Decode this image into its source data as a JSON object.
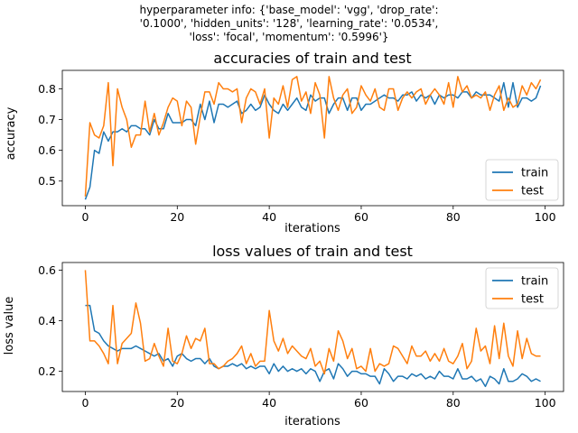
{
  "figure": {
    "suptitle_lines": [
      "hyperparameter info: {'base_model': 'vgg', 'drop_rate':",
      "'0.1000', 'hidden_units': '128', 'learning_rate': '0.0534',",
      "'loss': 'focal', 'momentum': '0.5996'}"
    ]
  },
  "colors": {
    "train": "#1f77b4",
    "test": "#ff7f0e"
  },
  "chart_data": [
    {
      "type": "line",
      "title": "accuracies of train and test",
      "xlabel": "iterations",
      "ylabel": "accuracy",
      "xlim": [
        -5,
        104
      ],
      "ylim": [
        0.42,
        0.86
      ],
      "xticks": [
        0,
        20,
        40,
        60,
        80,
        100
      ],
      "yticks": [
        0.5,
        0.6,
        0.7,
        0.8
      ],
      "ytick_labels": [
        "0.5",
        "0.6",
        "0.7",
        "0.8"
      ],
      "legend": {
        "placement": "lower-right",
        "entries": [
          "train",
          "test"
        ]
      },
      "grid": false,
      "series": [
        {
          "name": "train",
          "color": "#1f77b4",
          "x": [
            0,
            1,
            2,
            3,
            4,
            5,
            6,
            7,
            8,
            9,
            10,
            11,
            12,
            13,
            14,
            15,
            16,
            17,
            18,
            19,
            20,
            21,
            22,
            23,
            24,
            25,
            26,
            27,
            28,
            29,
            30,
            31,
            32,
            33,
            34,
            35,
            36,
            37,
            38,
            39,
            40,
            41,
            42,
            43,
            44,
            45,
            46,
            47,
            48,
            49,
            50,
            51,
            52,
            53,
            54,
            55,
            56,
            57,
            58,
            59,
            60,
            61,
            62,
            63,
            64,
            65,
            66,
            67,
            68,
            69,
            70,
            71,
            72,
            73,
            74,
            75,
            76,
            77,
            78,
            79,
            80,
            81,
            82,
            83,
            84,
            85,
            86,
            87,
            88,
            89,
            90,
            91,
            92,
            93,
            94,
            95,
            96,
            97,
            98,
            99
          ],
          "values": [
            0.44,
            0.48,
            0.6,
            0.59,
            0.66,
            0.63,
            0.66,
            0.66,
            0.67,
            0.66,
            0.68,
            0.68,
            0.67,
            0.67,
            0.65,
            0.7,
            0.67,
            0.67,
            0.72,
            0.69,
            0.69,
            0.69,
            0.7,
            0.7,
            0.68,
            0.75,
            0.7,
            0.76,
            0.69,
            0.75,
            0.75,
            0.74,
            0.75,
            0.76,
            0.72,
            0.73,
            0.75,
            0.73,
            0.74,
            0.78,
            0.75,
            0.73,
            0.72,
            0.75,
            0.73,
            0.75,
            0.77,
            0.74,
            0.73,
            0.78,
            0.76,
            0.77,
            0.77,
            0.72,
            0.75,
            0.77,
            0.77,
            0.73,
            0.77,
            0.77,
            0.73,
            0.75,
            0.75,
            0.76,
            0.77,
            0.78,
            0.77,
            0.77,
            0.76,
            0.78,
            0.78,
            0.79,
            0.76,
            0.78,
            0.77,
            0.78,
            0.75,
            0.78,
            0.77,
            0.78,
            0.78,
            0.77,
            0.79,
            0.79,
            0.77,
            0.79,
            0.78,
            0.78,
            0.78,
            0.77,
            0.76,
            0.82,
            0.74,
            0.82,
            0.74,
            0.77,
            0.77,
            0.76,
            0.77,
            0.81
          ]
        },
        {
          "name": "test",
          "color": "#ff7f0e",
          "x": [
            0,
            1,
            2,
            3,
            4,
            5,
            6,
            7,
            8,
            9,
            10,
            11,
            12,
            13,
            14,
            15,
            16,
            17,
            18,
            19,
            20,
            21,
            22,
            23,
            24,
            25,
            26,
            27,
            28,
            29,
            30,
            31,
            32,
            33,
            34,
            35,
            36,
            37,
            38,
            39,
            40,
            41,
            42,
            43,
            44,
            45,
            46,
            47,
            48,
            49,
            50,
            51,
            52,
            53,
            54,
            55,
            56,
            57,
            58,
            59,
            60,
            61,
            62,
            63,
            64,
            65,
            66,
            67,
            68,
            69,
            70,
            71,
            72,
            73,
            74,
            75,
            76,
            77,
            78,
            79,
            80,
            81,
            82,
            83,
            84,
            85,
            86,
            87,
            88,
            89,
            90,
            91,
            92,
            93,
            94,
            95,
            96,
            97,
            98,
            99
          ],
          "values": [
            0.45,
            0.69,
            0.65,
            0.64,
            0.68,
            0.82,
            0.55,
            0.8,
            0.74,
            0.7,
            0.61,
            0.65,
            0.65,
            0.76,
            0.66,
            0.72,
            0.65,
            0.69,
            0.74,
            0.77,
            0.76,
            0.68,
            0.76,
            0.74,
            0.62,
            0.71,
            0.79,
            0.79,
            0.75,
            0.82,
            0.8,
            0.8,
            0.79,
            0.8,
            0.69,
            0.77,
            0.8,
            0.79,
            0.75,
            0.8,
            0.64,
            0.77,
            0.75,
            0.81,
            0.74,
            0.83,
            0.84,
            0.76,
            0.79,
            0.72,
            0.82,
            0.78,
            0.64,
            0.84,
            0.77,
            0.73,
            0.78,
            0.8,
            0.72,
            0.74,
            0.81,
            0.78,
            0.76,
            0.8,
            0.74,
            0.73,
            0.8,
            0.8,
            0.73,
            0.77,
            0.79,
            0.77,
            0.79,
            0.8,
            0.75,
            0.78,
            0.8,
            0.78,
            0.75,
            0.82,
            0.74,
            0.84,
            0.79,
            0.81,
            0.77,
            0.78,
            0.77,
            0.79,
            0.73,
            0.78,
            0.81,
            0.73,
            0.77,
            0.74,
            0.75,
            0.81,
            0.78,
            0.82,
            0.8,
            0.83
          ]
        }
      ]
    },
    {
      "type": "line",
      "title": "loss values of train and test",
      "xlabel": "iterations",
      "ylabel": "loss value",
      "xlim": [
        -5,
        104
      ],
      "ylim": [
        0.12,
        0.63
      ],
      "xticks": [
        0,
        20,
        40,
        60,
        80,
        100
      ],
      "yticks": [
        0.2,
        0.4,
        0.6
      ],
      "ytick_labels": [
        "0.2",
        "0.4",
        "0.6"
      ],
      "legend": {
        "placement": "top-right",
        "entries": [
          "train",
          "test"
        ]
      },
      "grid": false,
      "series": [
        {
          "name": "train",
          "color": "#1f77b4",
          "x": [
            0,
            1,
            2,
            3,
            4,
            5,
            6,
            7,
            8,
            9,
            10,
            11,
            12,
            13,
            14,
            15,
            16,
            17,
            18,
            19,
            20,
            21,
            22,
            23,
            24,
            25,
            26,
            27,
            28,
            29,
            30,
            31,
            32,
            33,
            34,
            35,
            36,
            37,
            38,
            39,
            40,
            41,
            42,
            43,
            44,
            45,
            46,
            47,
            48,
            49,
            50,
            51,
            52,
            53,
            54,
            55,
            56,
            57,
            58,
            59,
            60,
            61,
            62,
            63,
            64,
            65,
            66,
            67,
            68,
            69,
            70,
            71,
            72,
            73,
            74,
            75,
            76,
            77,
            78,
            79,
            80,
            81,
            82,
            83,
            84,
            85,
            86,
            87,
            88,
            89,
            90,
            91,
            92,
            93,
            94,
            95,
            96,
            97,
            98,
            99
          ],
          "values": [
            0.46,
            0.46,
            0.36,
            0.35,
            0.32,
            0.3,
            0.29,
            0.28,
            0.29,
            0.29,
            0.29,
            0.3,
            0.29,
            0.28,
            0.27,
            0.26,
            0.27,
            0.24,
            0.25,
            0.22,
            0.26,
            0.27,
            0.25,
            0.24,
            0.25,
            0.25,
            0.23,
            0.25,
            0.22,
            0.21,
            0.22,
            0.22,
            0.23,
            0.22,
            0.23,
            0.21,
            0.22,
            0.21,
            0.22,
            0.22,
            0.19,
            0.23,
            0.2,
            0.22,
            0.2,
            0.21,
            0.2,
            0.21,
            0.19,
            0.21,
            0.2,
            0.16,
            0.2,
            0.21,
            0.17,
            0.23,
            0.21,
            0.18,
            0.2,
            0.2,
            0.19,
            0.19,
            0.18,
            0.18,
            0.15,
            0.21,
            0.19,
            0.16,
            0.18,
            0.18,
            0.17,
            0.19,
            0.18,
            0.19,
            0.17,
            0.18,
            0.17,
            0.2,
            0.18,
            0.18,
            0.17,
            0.21,
            0.17,
            0.17,
            0.18,
            0.16,
            0.17,
            0.14,
            0.18,
            0.17,
            0.15,
            0.21,
            0.16,
            0.16,
            0.17,
            0.19,
            0.18,
            0.16,
            0.17,
            0.16
          ]
        },
        {
          "name": "test",
          "color": "#ff7f0e",
          "x": [
            0,
            1,
            2,
            3,
            4,
            5,
            6,
            7,
            8,
            9,
            10,
            11,
            12,
            13,
            14,
            15,
            16,
            17,
            18,
            19,
            20,
            21,
            22,
            23,
            24,
            25,
            26,
            27,
            28,
            29,
            30,
            31,
            32,
            33,
            34,
            35,
            36,
            37,
            38,
            39,
            40,
            41,
            42,
            43,
            44,
            45,
            46,
            47,
            48,
            49,
            50,
            51,
            52,
            53,
            54,
            55,
            56,
            57,
            58,
            59,
            60,
            61,
            62,
            63,
            64,
            65,
            66,
            67,
            68,
            69,
            70,
            71,
            72,
            73,
            74,
            75,
            76,
            77,
            78,
            79,
            80,
            81,
            82,
            83,
            84,
            85,
            86,
            87,
            88,
            89,
            90,
            91,
            92,
            93,
            94,
            95,
            96,
            97,
            98,
            99
          ],
          "values": [
            0.6,
            0.32,
            0.32,
            0.3,
            0.27,
            0.23,
            0.46,
            0.23,
            0.31,
            0.33,
            0.35,
            0.47,
            0.39,
            0.24,
            0.25,
            0.31,
            0.26,
            0.22,
            0.37,
            0.24,
            0.23,
            0.27,
            0.34,
            0.29,
            0.33,
            0.32,
            0.37,
            0.23,
            0.23,
            0.21,
            0.22,
            0.24,
            0.25,
            0.27,
            0.3,
            0.23,
            0.27,
            0.22,
            0.24,
            0.24,
            0.44,
            0.32,
            0.28,
            0.33,
            0.27,
            0.3,
            0.28,
            0.26,
            0.25,
            0.29,
            0.22,
            0.24,
            0.19,
            0.29,
            0.24,
            0.36,
            0.32,
            0.25,
            0.29,
            0.21,
            0.22,
            0.2,
            0.29,
            0.2,
            0.23,
            0.22,
            0.23,
            0.3,
            0.29,
            0.26,
            0.23,
            0.3,
            0.26,
            0.26,
            0.28,
            0.24,
            0.27,
            0.24,
            0.29,
            0.24,
            0.23,
            0.26,
            0.31,
            0.21,
            0.24,
            0.37,
            0.28,
            0.3,
            0.23,
            0.38,
            0.25,
            0.39,
            0.26,
            0.22,
            0.36,
            0.25,
            0.33,
            0.27,
            0.26,
            0.26
          ]
        }
      ]
    }
  ]
}
